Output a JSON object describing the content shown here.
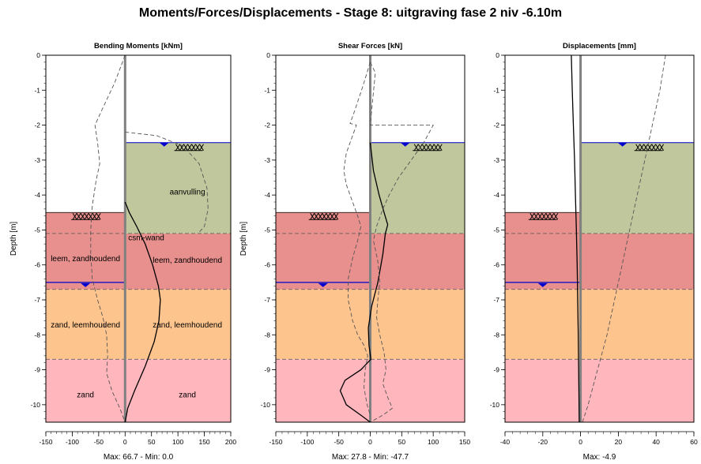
{
  "title": "Moments/Forces/Displacements - Stage 8: uitgraving fase 2 niv -6.10m",
  "wall_label": "csm-wand",
  "colors": {
    "aanvulling": "#c1c79c",
    "leem": "#e8908d",
    "zand_leemhoudend": "#fec48d",
    "zand": "#ffb6bd",
    "water": "#0000cc",
    "wall": "#808080"
  },
  "surface_levels": {
    "left_excavation": -4.5,
    "right_ground": -2.5,
    "left_water": -6.5,
    "right_water": -2.5
  },
  "layer_boundaries": [
    -5.1,
    -6.7,
    -8.7
  ],
  "left_layers": [
    {
      "name": "leem, zandhoudend",
      "top": -4.5,
      "bottom": -6.7,
      "color_key": "leem",
      "label_depth": -5.8
    },
    {
      "name": "zand, leemhoudend",
      "top": -6.7,
      "bottom": -8.7,
      "color_key": "zand_leemhoudend",
      "label_depth": -7.7
    },
    {
      "name": "zand",
      "top": -8.7,
      "bottom": -10.5,
      "color_key": "zand",
      "label_depth": -9.7
    }
  ],
  "right_layers": [
    {
      "name": "aanvulling",
      "top": -2.5,
      "bottom": -5.1,
      "color_key": "aanvulling",
      "label_depth": -3.9
    },
    {
      "name": "leem, zandhoudend",
      "top": -5.1,
      "bottom": -6.7,
      "color_key": "leem",
      "label_depth": -5.85
    },
    {
      "name": "zand, leemhoudend",
      "top": -6.7,
      "bottom": -8.7,
      "color_key": "zand_leemhoudend",
      "label_depth": -7.7
    },
    {
      "name": "zand",
      "top": -8.7,
      "bottom": -10.5,
      "color_key": "zand",
      "label_depth": -9.7
    }
  ],
  "chart_data": [
    {
      "type": "line",
      "title": "Bending Moments [kNm]",
      "ylabel": "Depth [m]",
      "xlim": [
        -150,
        200
      ],
      "ylim": [
        -10.5,
        0
      ],
      "xticks": [
        -150,
        -100,
        -50,
        0,
        50,
        100,
        150,
        200
      ],
      "yticks": [
        0,
        -1,
        -2,
        -3,
        -4,
        -5,
        -6,
        -7,
        -8,
        -9,
        -10
      ],
      "wall_x": 0,
      "footer": "Max: 66.7 - Min: 0.0",
      "series": [
        {
          "style": "solid",
          "points": [
            [
              0,
              -4.2
            ],
            [
              8,
              -4.5
            ],
            [
              22,
              -4.9
            ],
            [
              38,
              -5.4
            ],
            [
              52,
              -6.0
            ],
            [
              63,
              -6.6
            ],
            [
              66.7,
              -7.0
            ],
            [
              64,
              -7.6
            ],
            [
              55,
              -8.2
            ],
            [
              38,
              -8.9
            ],
            [
              18,
              -9.6
            ],
            [
              5,
              -10.1
            ],
            [
              0,
              -10.5
            ]
          ]
        },
        {
          "style": "dashed",
          "points": [
            [
              0,
              0
            ],
            [
              -20,
              -0.8
            ],
            [
              -45,
              -1.6
            ],
            [
              -57,
              -2.0
            ],
            [
              -52,
              -2.5
            ],
            [
              -48,
              -3.1
            ],
            [
              -55,
              -3.6
            ],
            [
              -62,
              -4.3
            ],
            [
              -65,
              -5.0
            ],
            [
              -65,
              -5.7
            ],
            [
              -62,
              -6.4
            ],
            [
              -52,
              -7.0
            ],
            [
              -42,
              -7.5
            ],
            [
              -35,
              -8.0
            ],
            [
              -33,
              -8.6
            ],
            [
              -35,
              -9.1
            ],
            [
              -25,
              -9.6
            ],
            [
              -10,
              -10.1
            ],
            [
              0,
              -10.5
            ]
          ]
        },
        {
          "style": "dashed",
          "points": [
            [
              0,
              -2.2
            ],
            [
              60,
              -2.3
            ],
            [
              110,
              -2.6
            ],
            [
              140,
              -3.1
            ],
            [
              155,
              -3.8
            ],
            [
              157,
              -4.4
            ],
            [
              150,
              -4.9
            ],
            [
              138,
              -5.1
            ]
          ]
        }
      ]
    },
    {
      "type": "line",
      "title": "Shear Forces [kN]",
      "ylabel": "Depth [m]",
      "xlim": [
        -150,
        150
      ],
      "ylim": [
        -10.5,
        0
      ],
      "xticks": [
        -150,
        -100,
        -50,
        0,
        50,
        100,
        150
      ],
      "yticks": [
        0,
        -1,
        -2,
        -3,
        -4,
        -5,
        -6,
        -7,
        -8,
        -9,
        -10
      ],
      "wall_x": 0,
      "footer": "Max: 27.8 - Min: -47.7",
      "series": [
        {
          "style": "solid",
          "points": [
            [
              0,
              -2.5
            ],
            [
              5,
              -3.3
            ],
            [
              14,
              -4.0
            ],
            [
              22,
              -4.5
            ],
            [
              27.8,
              -4.85
            ],
            [
              24,
              -5.1
            ],
            [
              20,
              -5.7
            ],
            [
              12,
              -6.5
            ],
            [
              2,
              -7.2
            ],
            [
              -3,
              -7.8
            ],
            [
              -2,
              -8.3
            ],
            [
              1,
              -8.7
            ],
            [
              -15,
              -9.0
            ],
            [
              -40,
              -9.3
            ],
            [
              -47.7,
              -9.6
            ],
            [
              -38,
              -10.0
            ],
            [
              -15,
              -10.3
            ],
            [
              0,
              -10.5
            ]
          ]
        },
        {
          "style": "dashed",
          "points": [
            [
              0,
              -0.2
            ],
            [
              -12,
              -0.9
            ],
            [
              -25,
              -1.6
            ],
            [
              -32,
              -1.95
            ],
            [
              -22,
              -2.0
            ],
            [
              -38,
              -2.8
            ],
            [
              -42,
              -3.3
            ],
            [
              -38,
              -3.7
            ],
            [
              -28,
              -4.2
            ],
            [
              -20,
              -4.6
            ],
            [
              -15,
              -4.9
            ],
            [
              -20,
              -5.3
            ],
            [
              -28,
              -5.8
            ],
            [
              -35,
              -6.4
            ],
            [
              -35,
              -7.0
            ],
            [
              -28,
              -7.6
            ],
            [
              -20,
              -8.0
            ],
            [
              -10,
              -8.3
            ],
            [
              -4,
              -8.6
            ],
            [
              -8,
              -9.0
            ],
            [
              -10,
              -9.5
            ],
            [
              -5,
              -10.0
            ],
            [
              0,
              -10.3
            ]
          ]
        },
        {
          "style": "dashed",
          "points": [
            [
              0,
              -0.2
            ],
            [
              8,
              -0.5
            ],
            [
              0,
              -2.0
            ],
            [
              100,
              -2.0
            ],
            [
              85,
              -2.5
            ],
            [
              65,
              -3.0
            ],
            [
              45,
              -3.5
            ],
            [
              30,
              -4.0
            ],
            [
              20,
              -4.4
            ],
            [
              10,
              -4.9
            ],
            [
              5,
              -5.3
            ],
            [
              12,
              -5.9
            ],
            [
              15,
              -6.5
            ],
            [
              12,
              -7.0
            ],
            [
              10,
              -7.5
            ],
            [
              15,
              -8.0
            ],
            [
              22,
              -8.5
            ],
            [
              25,
              -9.0
            ],
            [
              20,
              -9.4
            ],
            [
              28,
              -9.8
            ],
            [
              35,
              -10.1
            ],
            [
              20,
              -10.3
            ],
            [
              0,
              -10.5
            ]
          ]
        }
      ]
    },
    {
      "type": "line",
      "title": "Displacements [mm]",
      "ylabel": "",
      "xlim": [
        -40,
        60
      ],
      "ylim": [
        -10.5,
        0
      ],
      "xticks": [
        -40,
        -20,
        0,
        20,
        40,
        60
      ],
      "yticks": [
        0,
        -1,
        -2,
        -3,
        -4,
        -5,
        -6,
        -7,
        -8,
        -9,
        -10
      ],
      "wall_x": 0,
      "footer": "Max: -4.9",
      "series": [
        {
          "style": "solid",
          "points": [
            [
              -4.9,
              0
            ],
            [
              -4.4,
              -1
            ],
            [
              -3.8,
              -2
            ],
            [
              -3.2,
              -3
            ],
            [
              -2.7,
              -4
            ],
            [
              -2.2,
              -5
            ],
            [
              -1.8,
              -6
            ],
            [
              -1.5,
              -7
            ],
            [
              -1.2,
              -8
            ],
            [
              -1.0,
              -9
            ],
            [
              -0.8,
              -10
            ],
            [
              -0.7,
              -10.5
            ]
          ]
        },
        {
          "style": "dashed",
          "points": [
            [
              45,
              0
            ],
            [
              42,
              -1
            ],
            [
              38,
              -2
            ],
            [
              34,
              -3
            ],
            [
              30,
              -4
            ],
            [
              26,
              -5
            ],
            [
              22,
              -6
            ],
            [
              18,
              -7
            ],
            [
              14,
              -8
            ],
            [
              9,
              -9
            ],
            [
              4,
              -10
            ],
            [
              1,
              -10.5
            ]
          ]
        }
      ]
    }
  ]
}
